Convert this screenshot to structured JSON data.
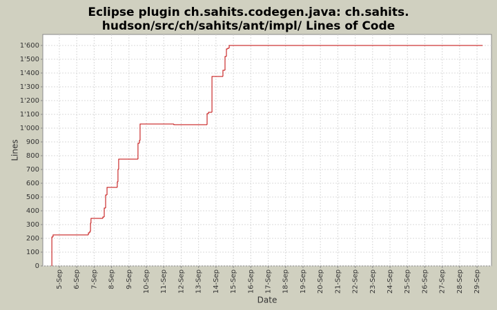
{
  "chart_data": {
    "type": "step",
    "title": [
      "Eclipse plugin ch.sahits.codegen.java: ch.sahits.",
      "hudson/src/ch/sahits/ant/impl/ Lines of Code"
    ],
    "x_label": "Date",
    "y_label": "Lines",
    "x": [
      4.56,
      4.57,
      4.64,
      6.67,
      6.75,
      6.79,
      6.82,
      7.5,
      7.58,
      7.66,
      7.74,
      8.33,
      8.37,
      8.41,
      9.52,
      9.6,
      9.64,
      11.58,
      13.49,
      13.57,
      13.77,
      14.4,
      14.52,
      14.6,
      14.68,
      14.76,
      29.32
    ],
    "series": [
      {
        "name": "Lines of Code",
        "color": "#c00000",
        "values": [
          0,
          210,
          225,
          240,
          250,
          310,
          345,
          355,
          420,
          515,
          570,
          610,
          700,
          775,
          890,
          910,
          1030,
          1025,
          1105,
          1115,
          1375,
          1420,
          1520,
          1575,
          1580,
          1600,
          1600
        ]
      }
    ],
    "xlim": [
      4.05,
      29.83
    ],
    "xticks": [
      {
        "value": 5,
        "label": "5-Sep"
      },
      {
        "value": 6,
        "label": "6-Sep"
      },
      {
        "value": 7,
        "label": "7-Sep"
      },
      {
        "value": 8,
        "label": "8-Sep"
      },
      {
        "value": 9,
        "label": "9-Sep"
      },
      {
        "value": 10,
        "label": "10-Sep"
      },
      {
        "value": 11,
        "label": "11-Sep"
      },
      {
        "value": 12,
        "label": "12-Sep"
      },
      {
        "value": 13,
        "label": "13-Sep"
      },
      {
        "value": 14,
        "label": "14-Sep"
      },
      {
        "value": 15,
        "label": "15-Sep"
      },
      {
        "value": 16,
        "label": "16-Sep"
      },
      {
        "value": 17,
        "label": "17-Sep"
      },
      {
        "value": 18,
        "label": "18-Sep"
      },
      {
        "value": 19,
        "label": "19-Sep"
      },
      {
        "value": 20,
        "label": "20-Sep"
      },
      {
        "value": 21,
        "label": "21-Sep"
      },
      {
        "value": 22,
        "label": "22-Sep"
      },
      {
        "value": 23,
        "label": "23-Sep"
      },
      {
        "value": 24,
        "label": "24-Sep"
      },
      {
        "value": 25,
        "label": "25-Sep"
      },
      {
        "value": 26,
        "label": "26-Sep"
      },
      {
        "value": 27,
        "label": "27-Sep"
      },
      {
        "value": 28,
        "label": "28-Sep"
      },
      {
        "value": 29,
        "label": "29-Sep"
      }
    ],
    "ylim": [
      0,
      1680
    ],
    "yticks": [
      0,
      100,
      200,
      300,
      400,
      500,
      600,
      700,
      800,
      900,
      {
        "value": 1000,
        "label": "1'000"
      },
      {
        "value": 1100,
        "label": "1'100"
      },
      {
        "value": 1200,
        "label": "1'200"
      },
      {
        "value": 1300,
        "label": "1'300"
      },
      {
        "value": 1400,
        "label": "1'400"
      },
      {
        "value": 1500,
        "label": "1'500"
      },
      {
        "value": 1600,
        "label": "1'600"
      }
    ],
    "grid": true
  }
}
